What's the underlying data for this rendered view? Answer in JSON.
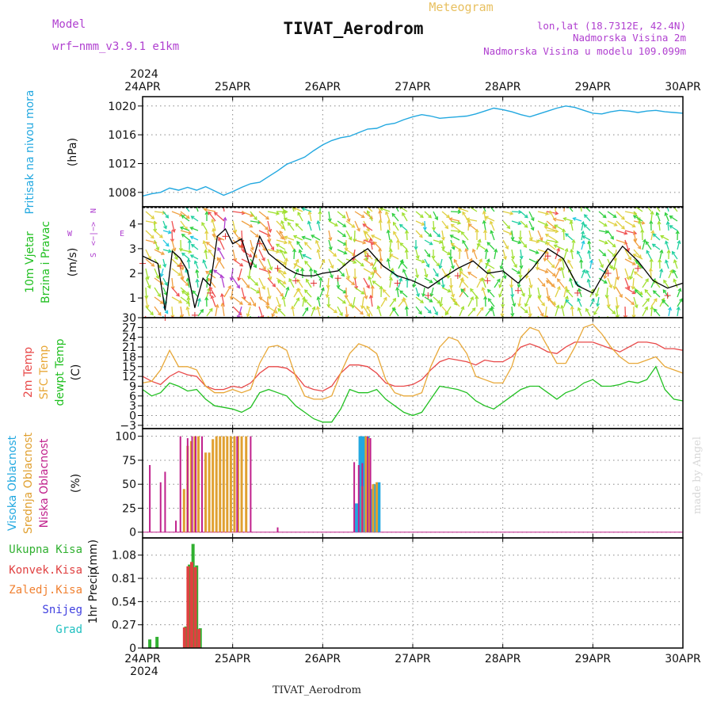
{
  "header": {
    "model_label": "Model",
    "model_name": "wrf−nmm_v3.9.1  e1km",
    "meteogram_label": "Meteogram",
    "station": "TIVAT_Aerodrom",
    "lonlat": "lon,lat (18.7312E, 42.4N)",
    "elevation": "Nadmorska Visina 2m",
    "model_elevation": "Nadmorska Visina u modelu 109.099m",
    "year": "2024",
    "footer_station": "TIVAT_Aerodrom",
    "credit": "made by Angel"
  },
  "colors": {
    "pressure": "#22a8e0",
    "wind_label": "#22c022",
    "compass": "#b040d0",
    "temp2m": "#e84848",
    "sfc": "#e8a838",
    "dewpt": "#22c022",
    "high_cloud": "#22a8e0",
    "mid_cloud": "#e0a030",
    "low_cloud": "#c0208c",
    "total_precip": "#30b030",
    "conv_precip": "#e04040",
    "frozen": "#f08030",
    "snow": "#4040e0",
    "grad": "#20c0c0",
    "title_purple": "#b040d0",
    "meteogram_gold": "#e8c060"
  },
  "chart_data": [
    {
      "type": "line",
      "panel": "pressure",
      "ylabel": "Pritisak na nivou mora",
      "unit": "(hPa)",
      "ylim": [
        1006,
        1021.3
      ],
      "yticks": [
        1008,
        1012,
        1016,
        1020
      ],
      "xticks": [
        "24APR",
        "25APR",
        "26APR",
        "27APR",
        "28APR",
        "29APR",
        "30APR"
      ],
      "grid": true,
      "x": [
        0,
        0.1,
        0.2,
        0.3,
        0.4,
        0.5,
        0.6,
        0.7,
        0.8,
        0.9,
        1.0,
        1.1,
        1.2,
        1.3,
        1.4,
        1.5,
        1.6,
        1.7,
        1.8,
        1.9,
        2.0,
        2.1,
        2.2,
        2.3,
        2.4,
        2.5,
        2.6,
        2.7,
        2.8,
        2.9,
        3.0,
        3.1,
        3.2,
        3.3,
        3.4,
        3.5,
        3.6,
        3.7,
        3.8,
        3.9,
        4.0,
        4.1,
        4.2,
        4.3,
        4.4,
        4.5,
        4.6,
        4.7,
        4.8,
        4.9,
        5.0,
        5.1,
        5.2,
        5.3,
        5.4,
        5.5,
        5.6,
        5.7,
        5.8,
        5.9,
        6.0
      ],
      "y": [
        1007.5,
        1007.8,
        1008.0,
        1008.6,
        1008.3,
        1008.7,
        1008.3,
        1008.8,
        1008.2,
        1007.6,
        1008.1,
        1008.7,
        1009.2,
        1009.4,
        1010.2,
        1011.0,
        1011.9,
        1012.4,
        1012.9,
        1013.8,
        1014.6,
        1015.2,
        1015.6,
        1015.8,
        1016.3,
        1016.8,
        1016.9,
        1017.4,
        1017.6,
        1018.1,
        1018.5,
        1018.8,
        1018.6,
        1018.3,
        1018.4,
        1018.5,
        1018.6,
        1018.9,
        1019.3,
        1019.7,
        1019.5,
        1019.2,
        1018.8,
        1018.5,
        1018.9,
        1019.3,
        1019.7,
        1020.0,
        1019.8,
        1019.4,
        1019.0,
        1018.9,
        1019.2,
        1019.4,
        1019.3,
        1019.1,
        1019.3,
        1019.4,
        1019.2,
        1019.1,
        1019.0
      ]
    },
    {
      "type": "line",
      "panel": "wind",
      "ylabel": "10m Vjetar",
      "ylabel2": "Brzina i Pravac",
      "unit": "(m/s)",
      "compass": {
        "north": "N",
        "west": "W",
        "east": "E",
        "south": "S",
        "arrows": "<−|−>"
      },
      "ylim": [
        0.2,
        4.7
      ],
      "yticks": [
        1,
        2,
        3,
        4
      ],
      "grid": true,
      "x": [
        0,
        0.17,
        0.25,
        0.33,
        0.42,
        0.5,
        0.58,
        0.67,
        0.75,
        0.83,
        0.92,
        1.0,
        1.1,
        1.2,
        1.3,
        1.4,
        1.5,
        1.6,
        1.7,
        1.8,
        1.9,
        2.0,
        2.17,
        2.33,
        2.5,
        2.67,
        2.83,
        3.0,
        3.17,
        3.33,
        3.5,
        3.67,
        3.83,
        4.0,
        4.17,
        4.33,
        4.5,
        4.67,
        4.83,
        5.0,
        5.17,
        5.33,
        5.5,
        5.67,
        5.83,
        6.0
      ],
      "y": [
        2.7,
        2.4,
        0.5,
        2.9,
        2.6,
        2.1,
        0.6,
        1.8,
        1.5,
        3.5,
        3.8,
        3.2,
        3.4,
        2.2,
        3.5,
        2.8,
        2.5,
        2.2,
        2.0,
        1.9,
        1.9,
        2.0,
        2.1,
        2.6,
        3.0,
        2.3,
        1.9,
        1.7,
        1.4,
        1.8,
        2.2,
        2.5,
        2.0,
        2.1,
        1.6,
        2.2,
        3.0,
        2.6,
        1.5,
        1.2,
        2.3,
        3.1,
        2.5,
        1.7,
        1.4,
        1.6
      ]
    },
    {
      "type": "line",
      "panel": "temperature",
      "ylabels": [
        "2m Temp",
        "SFC Temp",
        "dewpt Temp"
      ],
      "unit": "(C)",
      "ylim": [
        -4,
        30
      ],
      "yticks": [
        -3,
        0,
        3,
        6,
        9,
        12,
        15,
        18,
        21,
        24,
        27,
        30
      ],
      "grid": true,
      "x": [
        0,
        0.1,
        0.2,
        0.3,
        0.4,
        0.5,
        0.6,
        0.7,
        0.8,
        0.9,
        1.0,
        1.1,
        1.2,
        1.3,
        1.4,
        1.5,
        1.6,
        1.7,
        1.8,
        1.9,
        2.0,
        2.1,
        2.2,
        2.3,
        2.4,
        2.5,
        2.6,
        2.7,
        2.8,
        2.9,
        3.0,
        3.1,
        3.2,
        3.3,
        3.4,
        3.5,
        3.6,
        3.7,
        3.8,
        3.9,
        4.0,
        4.1,
        4.2,
        4.3,
        4.4,
        4.5,
        4.6,
        4.7,
        4.8,
        4.9,
        5.0,
        5.1,
        5.2,
        5.3,
        5.4,
        5.5,
        5.6,
        5.7,
        5.8,
        5.9,
        6.0
      ],
      "series": [
        {
          "name": "2m Temp",
          "color": "#e84848",
          "values": [
            12,
            10.5,
            9.5,
            12,
            13.5,
            12.5,
            12,
            9,
            8,
            8,
            9,
            8.5,
            10,
            13,
            15,
            15,
            14.5,
            12.5,
            9,
            8,
            7.5,
            9,
            13,
            15.5,
            15.5,
            15,
            13,
            10,
            9,
            9,
            9.5,
            11,
            14,
            16.5,
            17.5,
            17,
            16.5,
            15.5,
            17,
            16.5,
            16.5,
            18,
            21,
            22,
            21,
            19.5,
            19,
            21,
            22.5,
            22.5,
            22.5,
            21.5,
            20.5,
            19.5,
            21,
            22.5,
            22.5,
            22,
            20.5,
            20.5,
            20
          ]
        },
        {
          "name": "SFC Temp",
          "color": "#e8a838",
          "values": [
            10,
            10.5,
            14,
            20,
            15,
            15,
            14,
            9,
            7,
            7,
            8,
            7,
            8,
            16,
            21,
            21.5,
            20,
            12,
            6,
            5,
            5,
            6,
            13,
            19,
            22,
            21,
            19,
            11,
            7,
            6,
            6,
            7,
            15,
            21,
            24,
            23,
            19,
            12,
            11,
            10,
            10,
            15,
            24,
            27,
            26,
            21,
            16,
            16,
            21,
            27,
            28,
            25,
            21,
            18,
            16,
            16,
            17,
            18,
            15,
            14,
            13
          ]
        },
        {
          "name": "dewpt Temp",
          "color": "#22c022",
          "values": [
            8,
            6,
            7,
            10,
            9,
            7.5,
            8,
            5,
            3,
            2.5,
            2,
            1,
            2.5,
            7,
            8,
            7,
            6,
            3,
            1,
            -1,
            -2,
            -2,
            2,
            8,
            7,
            7,
            8,
            5,
            3,
            1,
            0,
            1,
            5,
            9,
            8.5,
            8,
            7,
            4.5,
            3,
            2,
            4,
            6,
            8,
            9,
            9,
            7,
            5,
            7,
            8,
            10,
            11,
            9,
            9,
            9.5,
            10.5,
            10,
            11,
            15,
            8,
            5,
            4.5
          ]
        }
      ]
    },
    {
      "type": "bar",
      "panel": "clouds",
      "ylabels": [
        "Visoka Oblacnost",
        "Srednja Oblacnost",
        "Niska Oblacnost"
      ],
      "unit": "(%)",
      "ylim": [
        -6,
        108
      ],
      "yticks": [
        0,
        25,
        50,
        75,
        100
      ],
      "grid": true,
      "series": [
        {
          "name": "Visoka Oblacnost",
          "color": "#22a8e0",
          "x": [
            2.38,
            2.42,
            2.46,
            2.5,
            2.54,
            2.58,
            2.62
          ],
          "values": [
            30,
            100,
            100,
            100,
            45,
            50,
            52
          ]
        },
        {
          "name": "Srednja Oblacnost",
          "color": "#e0a030",
          "x": [
            0.46,
            0.5,
            0.54,
            0.58,
            0.62,
            0.7,
            0.74,
            0.78,
            0.82,
            0.86,
            0.9,
            0.94,
            0.98,
            1.02,
            1.06,
            1.1,
            1.15,
            2.44,
            2.48,
            2.52,
            2.56,
            2.6
          ],
          "values": [
            45,
            90,
            95,
            100,
            100,
            83,
            83,
            97,
            100,
            100,
            100,
            100,
            100,
            100,
            100,
            100,
            100,
            48,
            100,
            98,
            50,
            52
          ]
        },
        {
          "name": "Niska Oblacnost",
          "color": "#c0208c",
          "x": [
            0.08,
            0.2,
            0.25,
            0.37,
            0.42,
            0.5,
            0.55,
            0.59,
            0.66,
            1.05,
            1.2,
            1.5,
            2.35,
            2.4,
            2.44,
            2.5,
            2.53
          ],
          "values": [
            70,
            52,
            63,
            12,
            100,
            98,
            100,
            100,
            100,
            100,
            100,
            5,
            73,
            70,
            72,
            100,
            98
          ]
        }
      ]
    },
    {
      "type": "bar",
      "panel": "precip",
      "ylabels": [
        "Ukupna Kisa",
        "Konvek.Kisa",
        "Zaledj.Kisa",
        "Snijeg",
        "Grad"
      ],
      "ylabel": "1hr Precip",
      "unit": "(mm)",
      "ylim": [
        0,
        1.28
      ],
      "yticks": [
        0,
        0.27,
        0.54,
        0.81,
        1.08
      ],
      "grid": true,
      "series": [
        {
          "name": "Ukupna Kisa",
          "color": "#30b030",
          "x": [
            0.08,
            0.16,
            0.48,
            0.52,
            0.56,
            0.6,
            0.64
          ],
          "values": [
            0.1,
            0.13,
            0.25,
            0.97,
            1.21,
            0.96,
            0.23
          ]
        },
        {
          "name": "Konvek.Kisa",
          "color": "#e04040",
          "x": [
            0.465,
            0.505,
            0.545,
            0.585,
            0.625
          ],
          "values": [
            0.24,
            0.95,
            1.0,
            0.94,
            0.22
          ]
        }
      ]
    }
  ]
}
